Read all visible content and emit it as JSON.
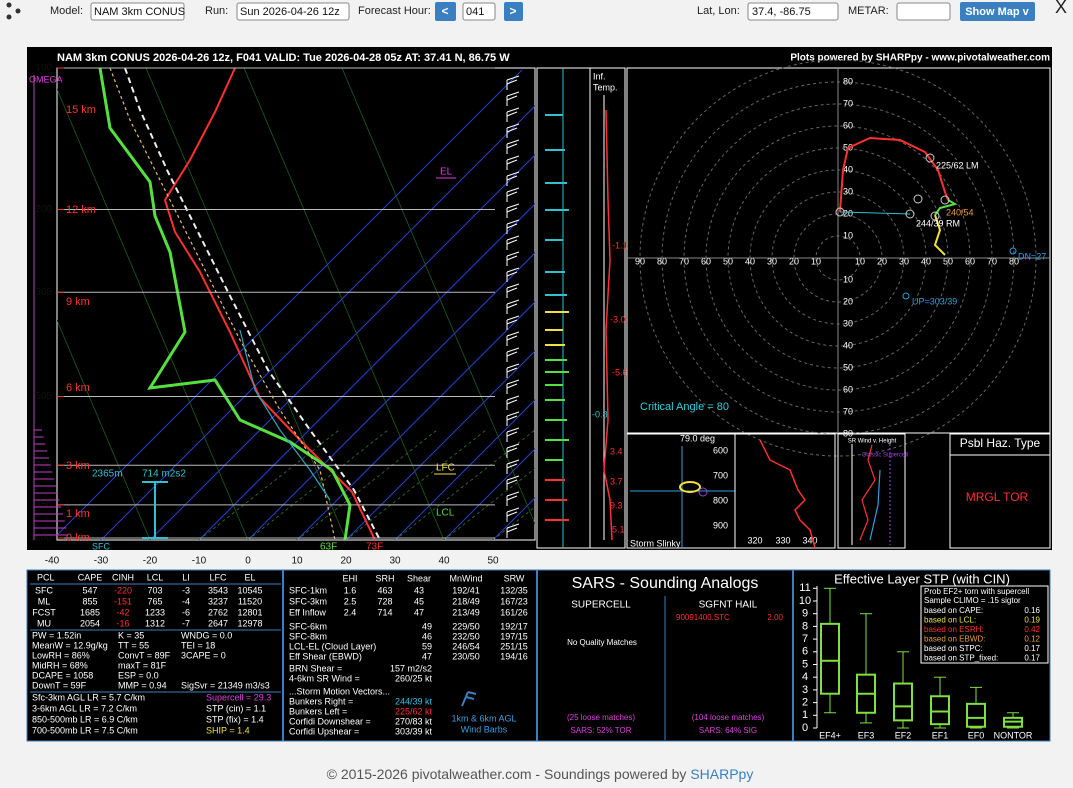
{
  "toolbar": {
    "model_label": "Model:",
    "model": "NAM 3km CONUS",
    "run_label": "Run:",
    "run": "Sun 2026-04-26 12z",
    "forecast_label": "Forecast Hour:",
    "prev": "<",
    "hour": "041",
    "next": ">",
    "latlon_label": "Lat, Lon:",
    "latlon": "37.4, -86.75",
    "metar_label": "METAR:",
    "show_map": "Show Map v",
    "close": "X"
  },
  "skewt": {
    "title": "NAM 3km CONUS 2026-04-26 12z, F041  VALID: Tue 2026-04-28 05z  AT: 37.41 N, 86.75 W",
    "credit": "Plots powered by SHARPpy - www.pivotalweather.com",
    "pressure_levels": [
      100,
      200,
      300,
      500,
      700,
      850,
      1000
    ],
    "height_labels": [
      "15 km",
      "12 km",
      "9 km",
      "6 km",
      "3 km",
      "1 km",
      "0 km"
    ],
    "temp_ticks": [
      -40,
      -30,
      -20,
      -10,
      0,
      10,
      20,
      30,
      40,
      50
    ],
    "omega": "OMEGA",
    "el": "EL",
    "lfc": "LFC",
    "lcl": "LCL",
    "sfc": "SFC",
    "lcl_height": "2365m",
    "eff_srh": "714 m2s2",
    "sfc_dewpoint": "63F",
    "sfc_temp": "73F"
  },
  "inferred_temp": {
    "title_line1": "Inf.",
    "title_line2": "Temp.",
    "labels": [
      "-1.1",
      "-3.0",
      "-5.6",
      "-0.8",
      "3.4",
      "3.7",
      "9.3",
      "5.1"
    ]
  },
  "hodograph": {
    "rings": [
      10,
      20,
      30,
      40,
      50,
      60,
      70,
      80,
      90
    ],
    "left_mover": "225/62 LM",
    "right_mover": "244/39 RM",
    "mean_wind": "240/54",
    "upshear": "UP=303/39",
    "downshear": "DN=27",
    "critical_angle": "Critical Angle = 80"
  },
  "slinky": {
    "angle": "79.0 deg",
    "title": "Storm Slinky"
  },
  "theta_e": {
    "pressure_labels": [
      "600",
      "700",
      "800",
      "900"
    ],
    "theta_labels": [
      "320",
      "330",
      "340"
    ]
  },
  "sr_wind": {
    "title": "SR Wind v. Height",
    "note": "Classic Supercell"
  },
  "hazard": {
    "title": "Psbl Haz. Type",
    "value": "MRGL TOR"
  },
  "thermo": {
    "headers": [
      "PCL",
      "CAPE",
      "CINH",
      "LCL",
      "LI",
      "LFC",
      "EL"
    ],
    "rows": [
      [
        "SFC",
        "547",
        "-220",
        "703",
        "-3",
        "3543",
        "10545"
      ],
      [
        "ML",
        "855",
        "-151",
        "765",
        "-4",
        "3237",
        "11520"
      ],
      [
        "FCST",
        "1685",
        "-42",
        "1233",
        "-6",
        "2762",
        "12801"
      ],
      [
        "MU",
        "2054",
        "-16",
        "1312",
        "-7",
        "2647",
        "12978"
      ]
    ],
    "indices": [
      [
        "PW = 1.52in",
        "K = 35",
        "WNDG = 0.0"
      ],
      [
        "MeanW = 12.9g/kg",
        "TT = 55",
        "TEI = 18"
      ],
      [
        "LowRH = 86%",
        "ConvT = 89F",
        "3CAPE = 0"
      ],
      [
        "MidRH = 68%",
        "maxT = 81F"
      ],
      [
        "DCAPE = 1058",
        "ESP = 0.0"
      ],
      [
        "DownT = 59F",
        "MMP = 0.94",
        "SigSvr = 21349 m3/s3"
      ]
    ],
    "lapse_rates": [
      "Sfc-3km AGL LR = 5.7 C/km",
      "3-6km AGL LR = 7.2 C/km",
      "850-500mb LR = 6.9 C/km",
      "700-500mb LR = 7.5 C/km"
    ],
    "composites": [
      "Supercell = 29.3",
      "STP (cin) = 1.1",
      "STP (fix) = 1.4",
      "SHIP = 1.4"
    ]
  },
  "kinematic": {
    "headers": [
      "EHI",
      "SRH",
      "Shear",
      "MnWind",
      "SRW"
    ],
    "rows": [
      [
        "SFC-1km",
        "1.6",
        "463",
        "43",
        "192/41",
        "132/35"
      ],
      [
        "SFC-3km",
        "2.5",
        "728",
        "45",
        "218/49",
        "167/23"
      ],
      [
        "Eff Inflow",
        "2.4",
        "714",
        "47",
        "213/49",
        "161/26"
      ]
    ],
    "shear_rows": [
      [
        "SFC-6km",
        "49",
        "229/50",
        "192/17"
      ],
      [
        "SFC-8km",
        "46",
        "232/50",
        "197/15"
      ],
      [
        "LCL-EL (Cloud Layer)",
        "59",
        "246/54",
        "251/15"
      ],
      [
        "Eff Shear (EBWD)",
        "47",
        "230/50",
        "194/16"
      ]
    ],
    "brn": [
      [
        "BRN Shear =",
        "157 m2/s2"
      ],
      [
        "4-6km SR Wind =",
        "260/25 kt"
      ]
    ],
    "motion_title": "...Storm Motion Vectors...",
    "motions": [
      [
        "Bunkers Right =",
        "244/39 kt"
      ],
      [
        "Bunkers Left =",
        "225/62 kt"
      ],
      [
        "Corfidi Downshear =",
        "270/83 kt"
      ],
      [
        "Corfidi Upshear =",
        "303/39 kt"
      ]
    ],
    "barb_note": [
      "1km & 6km AGL",
      "Wind Barbs"
    ]
  },
  "sars": {
    "title": "SARS - Sounding Analogs",
    "supercell": "SUPERCELL",
    "hail": "SGFNT HAIL",
    "supercell_matches": "No Quality Matches",
    "hail_match": "90091400.STC",
    "hail_size": "2.00",
    "supercell_loose": "(25 loose matches)",
    "supercell_pct": "SARS: 52% TOR",
    "hail_loose": "(104 loose matches)",
    "hail_pct": "SARS: 64% SIG"
  },
  "stp": {
    "title": "Effective Layer STP (with CIN)",
    "yticks": [
      0,
      1,
      2,
      3,
      4,
      5,
      6,
      7,
      8,
      9,
      10,
      11
    ],
    "categories": [
      "EF4+",
      "EF3",
      "EF2",
      "EF1",
      "EF0",
      "NONTOR"
    ],
    "boxes": [
      {
        "low": 1.2,
        "q1": 2.7,
        "median": 5.3,
        "q3": 8.2,
        "high": 11
      },
      {
        "low": 0.4,
        "q1": 1.2,
        "median": 2.7,
        "q3": 4.2,
        "high": 9
      },
      {
        "low": 0,
        "q1": 0.6,
        "median": 1.7,
        "q3": 3.5,
        "high": 6
      },
      {
        "low": 0,
        "q1": 0.3,
        "median": 1.3,
        "q3": 2.5,
        "high": 4
      },
      {
        "low": 0,
        "q1": 0.1,
        "median": 0.8,
        "q3": 1.9,
        "high": 3.2
      },
      {
        "low": 0,
        "q1": 0.1,
        "median": 0.5,
        "q3": 0.8,
        "high": 1.2
      }
    ],
    "legend_title": [
      "Prob EF2+ torn with supercell",
      "Sample CLIMO = .15 sigtor"
    ],
    "legend": [
      [
        "based on CAPE:",
        "0.16"
      ],
      [
        "based on LCL:",
        "0.19"
      ],
      [
        "based on ESRH:",
        "0.42"
      ],
      [
        "based on EBWD:",
        "0.12"
      ],
      [
        "based on STPC:",
        "0.17"
      ],
      [
        "based on STP_fixed:",
        "0.17"
      ]
    ]
  },
  "footer": {
    "text": "© 2015-2026 pivotalweather.com - Soundings powered by ",
    "link": "SHARPpy"
  }
}
